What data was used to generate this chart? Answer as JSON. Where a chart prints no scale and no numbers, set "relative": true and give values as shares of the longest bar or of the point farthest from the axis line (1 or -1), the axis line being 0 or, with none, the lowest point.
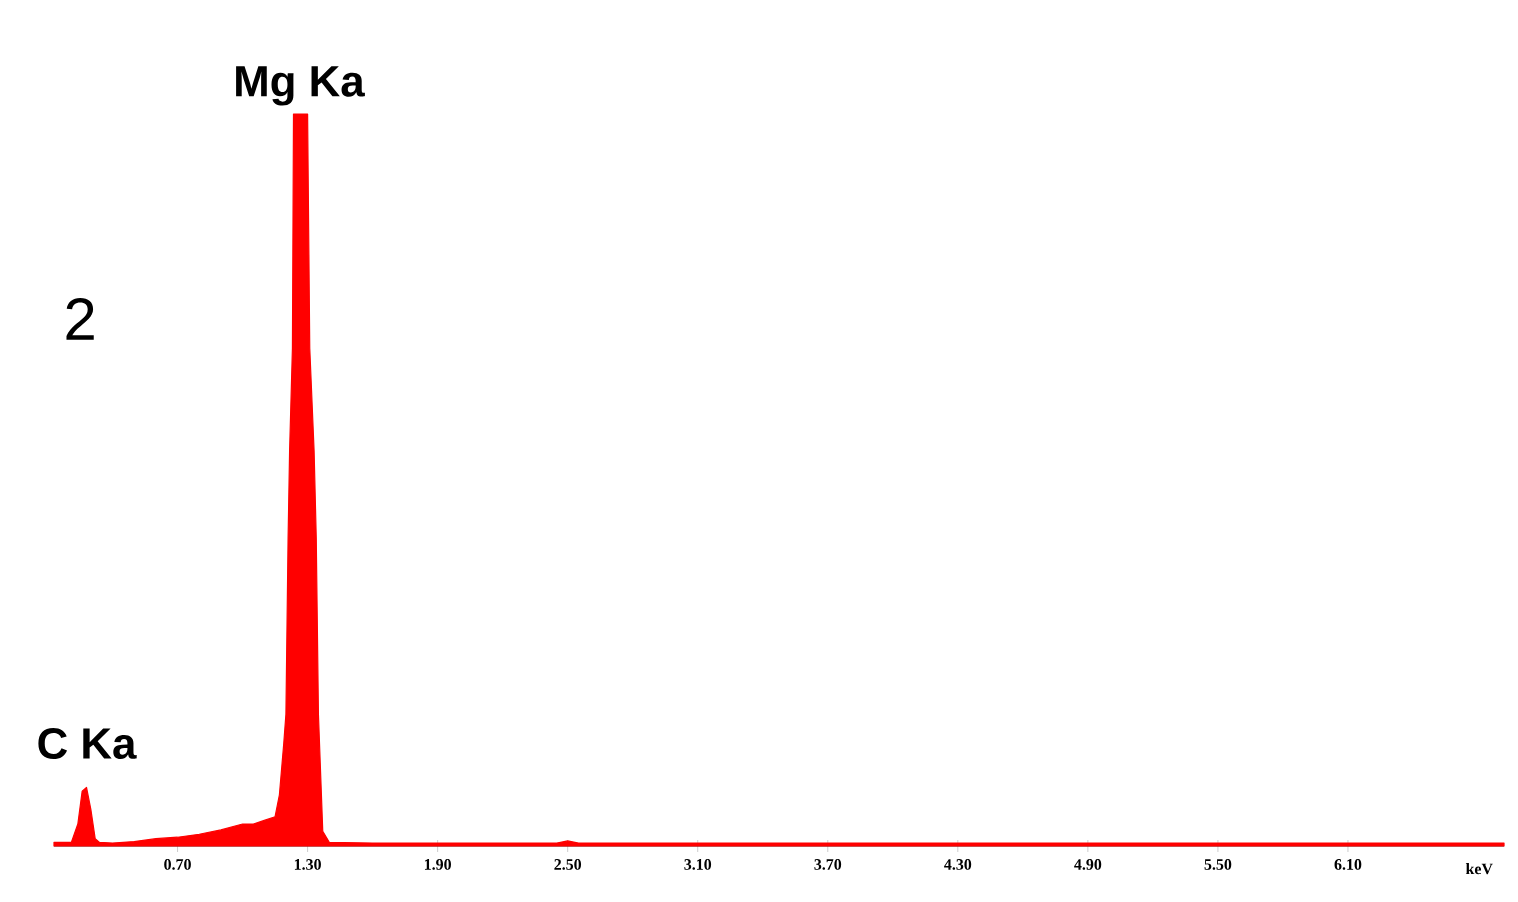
{
  "chart_data": {
    "type": "area",
    "relative": true,
    "color": "#ff0000",
    "xlabel": "keV",
    "x": [
      0.13,
      0.21,
      0.24,
      0.26,
      0.28,
      0.3,
      0.32,
      0.34,
      0.4,
      0.5,
      0.6,
      0.7,
      0.8,
      0.9,
      1.0,
      1.05,
      1.1,
      1.15,
      1.17,
      1.19,
      1.2,
      1.21,
      1.217,
      1.23,
      1.235,
      1.26,
      1.3,
      1.31,
      1.33,
      1.34,
      1.35,
      1.355,
      1.37,
      1.4,
      1.6,
      2.0,
      2.45,
      2.5,
      2.55,
      3.0,
      4.0,
      5.0,
      6.0,
      6.82
    ],
    "values": [
      0.005,
      0.005,
      0.03,
      0.075,
      0.08,
      0.05,
      0.01,
      0.005,
      0.004,
      0.006,
      0.01,
      0.012,
      0.016,
      0.022,
      0.03,
      0.03,
      0.035,
      0.04,
      0.07,
      0.14,
      0.18,
      0.42,
      0.54,
      0.68,
      1.0,
      1.0,
      1.0,
      0.68,
      0.54,
      0.42,
      0.18,
      0.14,
      0.02,
      0.005,
      0.004,
      0.004,
      0.004,
      0.007,
      0.004,
      0.004,
      0.004,
      0.004,
      0.004,
      0.004
    ],
    "xlim": [
      0.13,
      6.82
    ],
    "xticks": [
      {
        "value": 0.7,
        "label": "0.70"
      },
      {
        "value": 1.3,
        "label": "1.30"
      },
      {
        "value": 1.9,
        "label": "1.90"
      },
      {
        "value": 2.5,
        "label": "2.50"
      },
      {
        "value": 3.1,
        "label": "3.10"
      },
      {
        "value": 3.7,
        "label": "3.70"
      },
      {
        "value": 4.3,
        "label": "4.30"
      },
      {
        "value": 4.9,
        "label": "4.90"
      },
      {
        "value": 5.5,
        "label": "5.50"
      },
      {
        "value": 6.1,
        "label": "6.10"
      }
    ],
    "annotations": [
      {
        "text": "Mg Ka",
        "x": 1.26,
        "y": 1
      },
      {
        "text": "C Ka",
        "x": 0.28,
        "y": 0.08
      },
      "2"
    ]
  }
}
